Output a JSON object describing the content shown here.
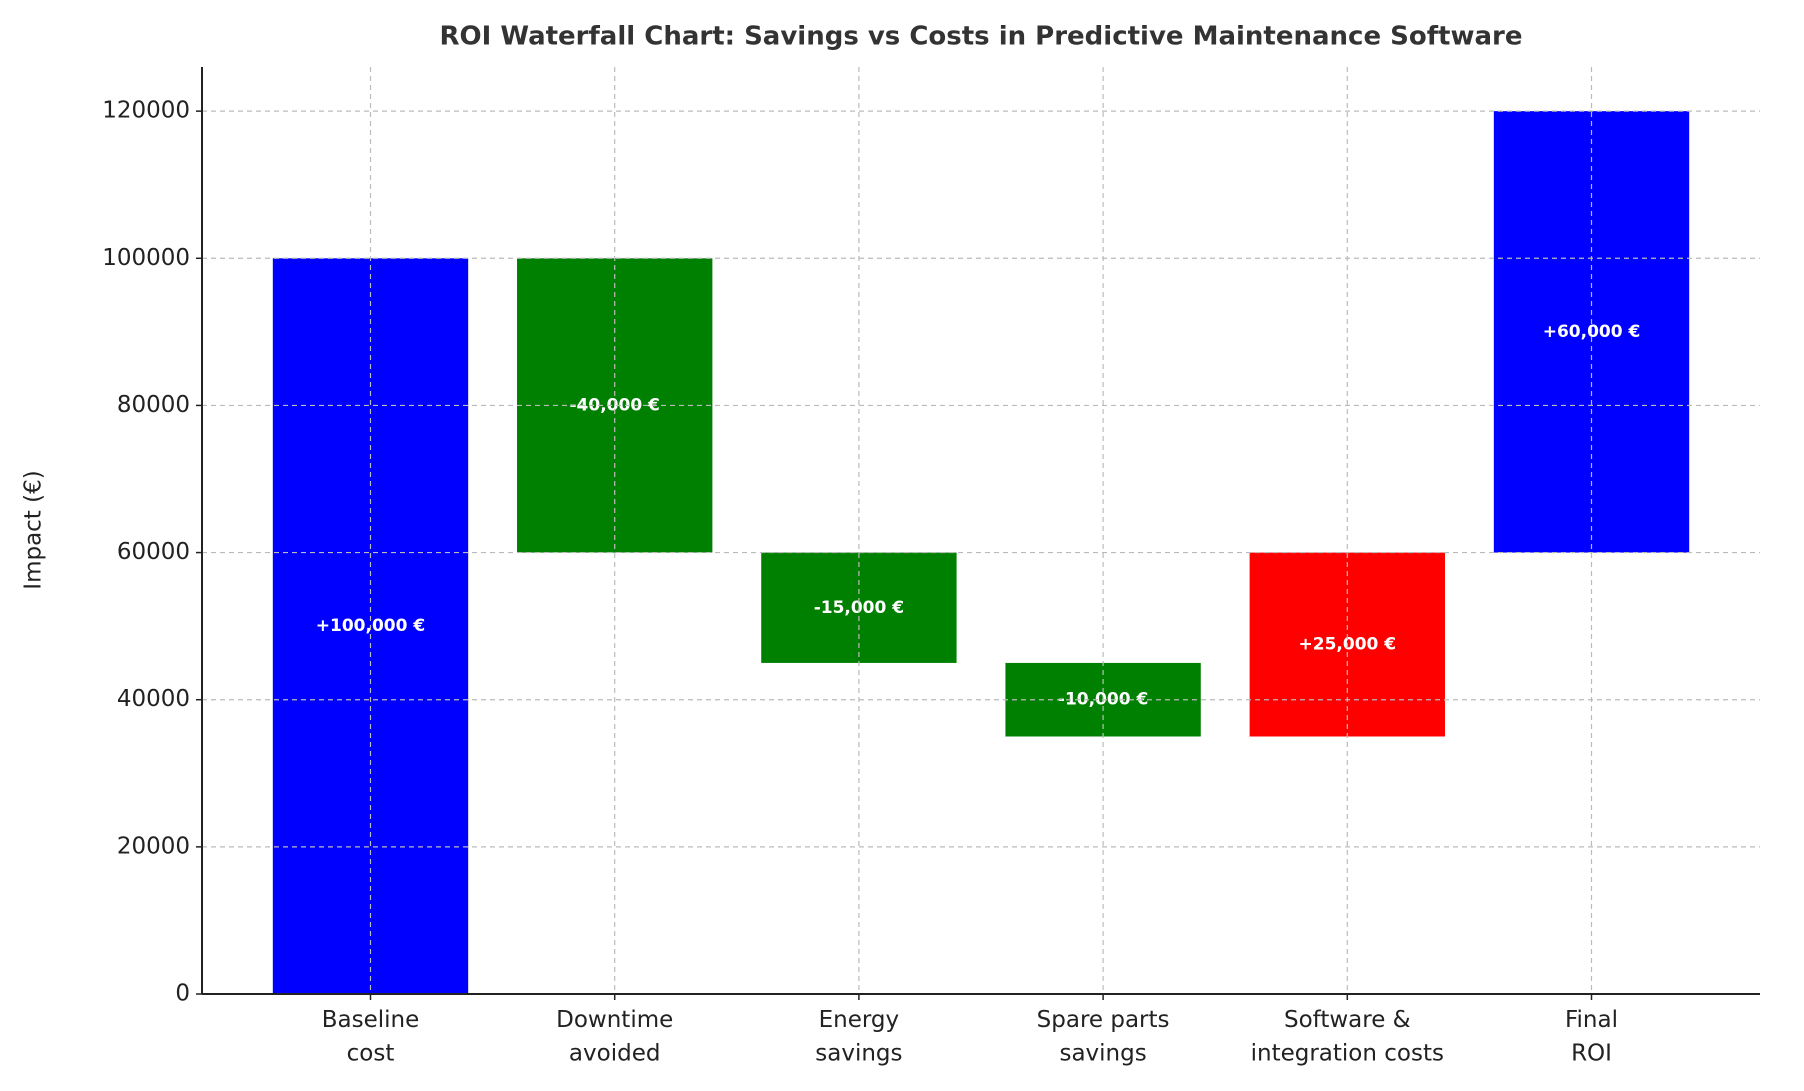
{
  "chart_data": {
    "type": "waterfall",
    "title": "ROI Waterfall Chart: Savings vs Costs in Predictive Maintenance Software",
    "y_label": "Impact (€)",
    "categories": [
      "Baseline\ncost",
      "Downtime\navoided",
      "Energy\nsavings",
      "Spare parts\nsavings",
      "Software &\nintegration costs",
      "Final\nROI"
    ],
    "values": [
      100000,
      -40000,
      -15000,
      -10000,
      25000,
      60000
    ],
    "value_labels": [
      "+100,000 €",
      "-40,000 €",
      "-15,000 €",
      "-10,000 €",
      "+25,000 €",
      "+60,000 €"
    ],
    "colors": [
      "#0000ff",
      "#008000",
      "#008000",
      "#008000",
      "#ff0000",
      "#0000ff"
    ],
    "ylim": [
      0,
      126000
    ],
    "yticks": [
      0,
      20000,
      40000,
      60000,
      80000,
      100000,
      120000
    ],
    "grid": true
  }
}
